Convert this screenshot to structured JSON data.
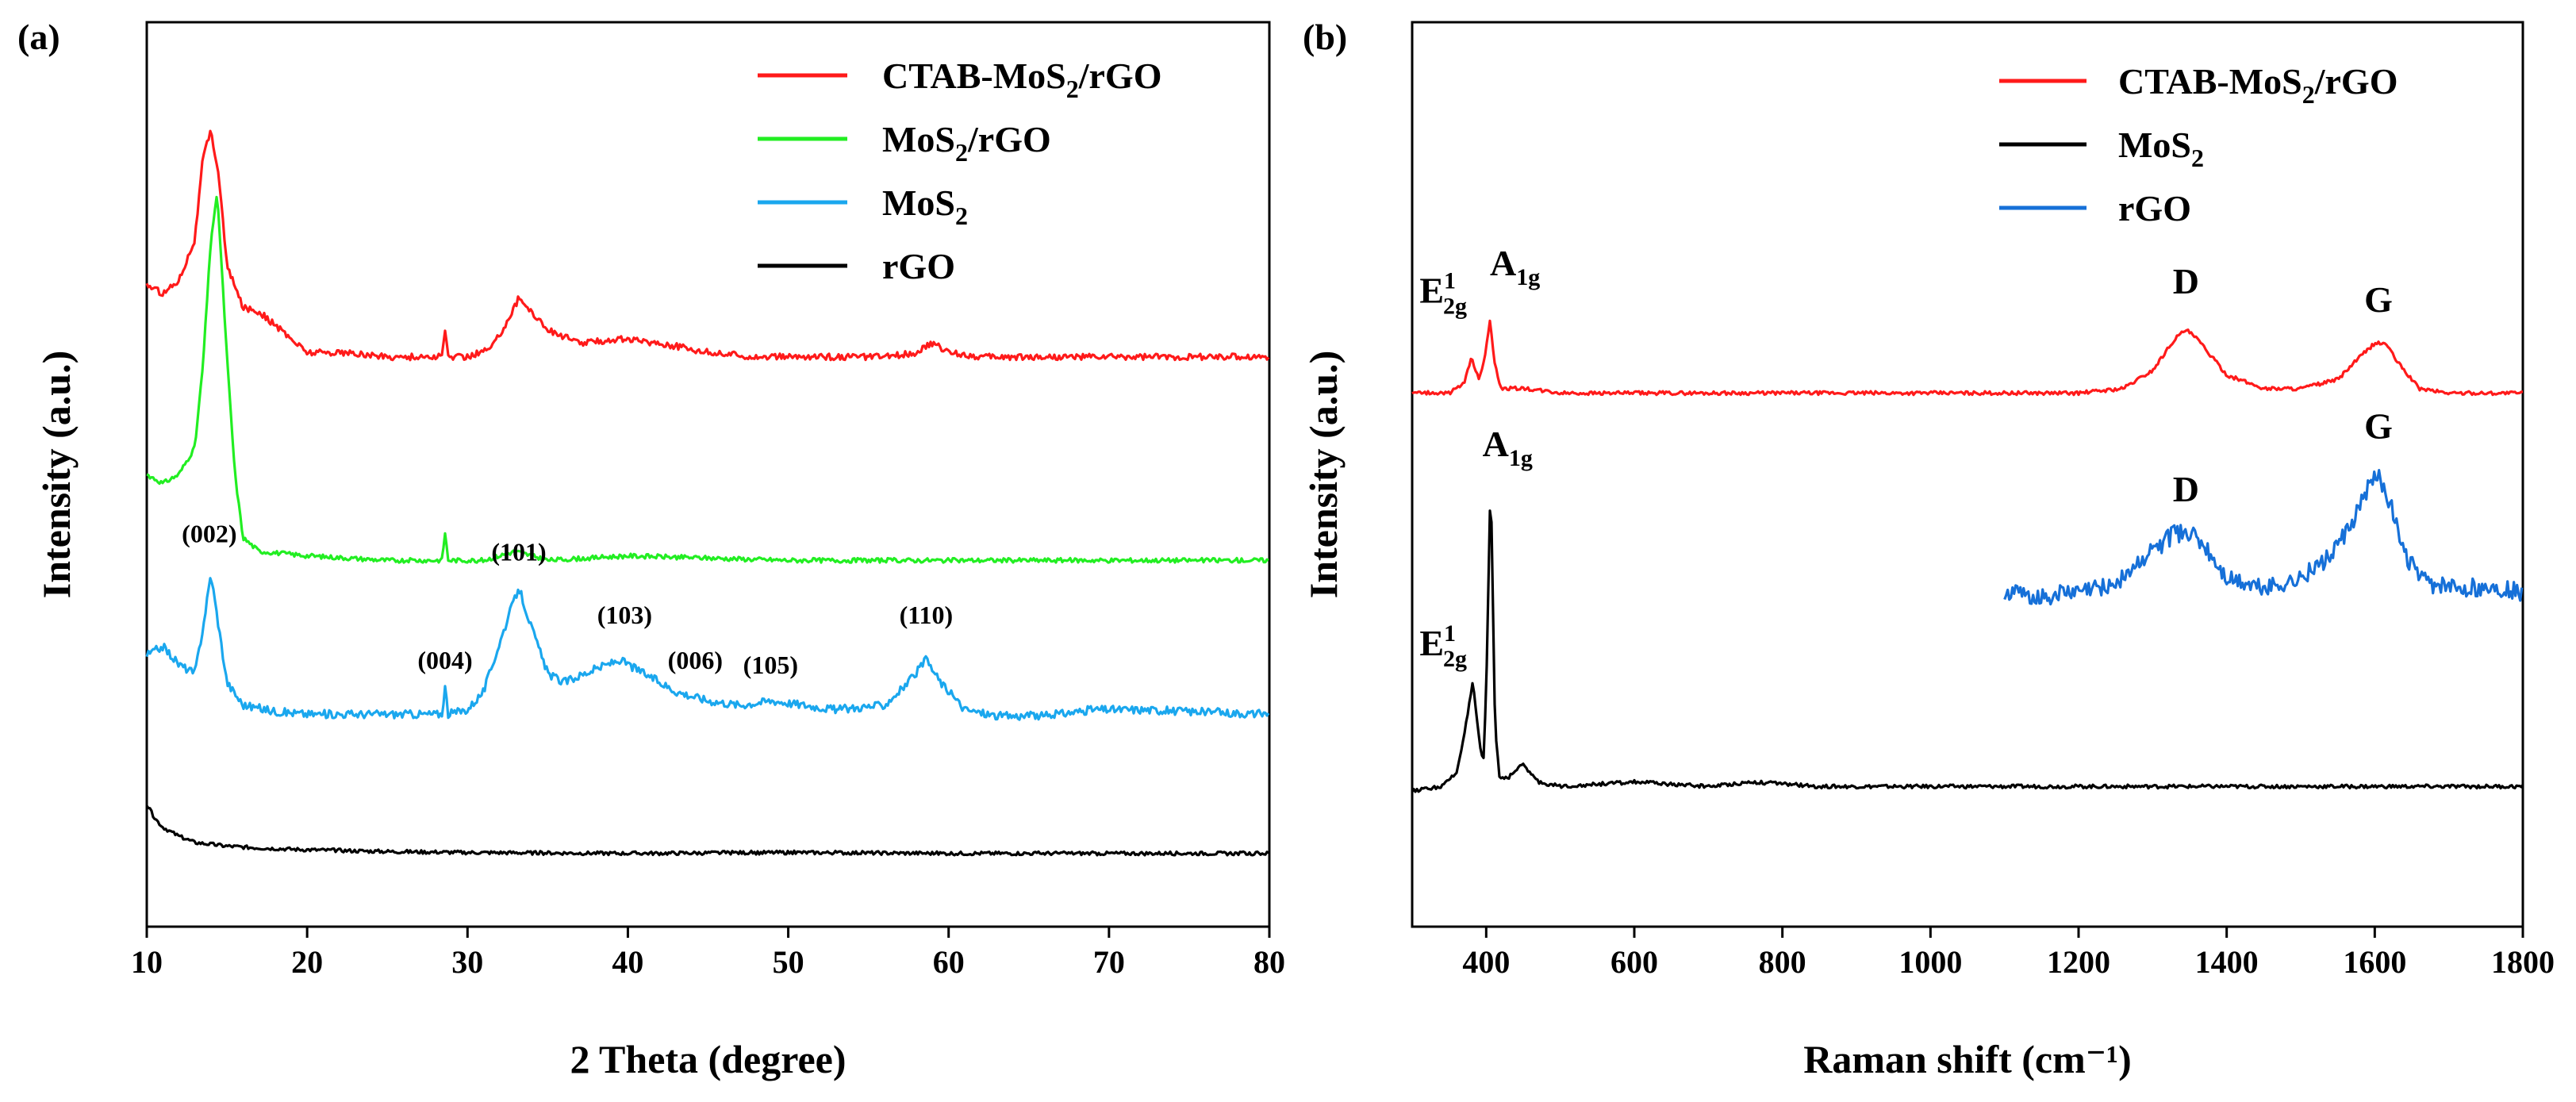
{
  "chart_data": [
    {
      "type": "line",
      "panel_label": "(a)",
      "xlabel": "2 Theta (degree)",
      "ylabel": "Intensity (a.u.)",
      "xlim": [
        10,
        80
      ],
      "ylim": [
        0,
        100
      ],
      "xticks": [
        10,
        20,
        30,
        40,
        50,
        60,
        70,
        80
      ],
      "yticks_shown": false,
      "legend_position": "top-right",
      "series": [
        {
          "name": "CTAB-MoS2/rGO",
          "legend_main": "CTAB-MoS",
          "legend_sub": "2",
          "legend_tail": "/rGO",
          "color": "#ff1a1a",
          "noise": 0.35,
          "x": [
            10,
            11,
            12,
            13,
            13.5,
            14,
            14.5,
            15,
            16,
            17,
            18,
            20,
            22,
            25,
            28,
            28.4,
            28.6,
            28.8,
            30,
            31.5,
            32.5,
            33.2,
            34,
            35,
            37,
            39.5,
            42,
            45,
            48,
            52,
            56,
            58,
            59,
            60,
            62,
            65,
            70,
            75,
            80
          ],
          "y": [
            71,
            70,
            71.5,
            76,
            85,
            88,
            83,
            73,
            68.5,
            68,
            66.5,
            63.5,
            63.5,
            63,
            63,
            63,
            66,
            63,
            63,
            64,
            67,
            69.5,
            68,
            66,
            64.5,
            65,
            64.5,
            63.5,
            63,
            63,
            63,
            63.5,
            64.5,
            63.5,
            63,
            63,
            63,
            63,
            63
          ]
        },
        {
          "name": "MoS2/rGO",
          "legend_main": "MoS",
          "legend_sub": "2",
          "legend_tail": "/rGO",
          "color": "#22ee22",
          "noise": 0.25,
          "x": [
            10,
            11,
            12,
            13,
            13.5,
            14,
            14.4,
            15,
            15.5,
            16,
            17,
            20,
            25,
            28.4,
            28.6,
            28.8,
            31,
            33,
            35,
            40,
            50,
            60,
            70,
            80
          ],
          "y": [
            50,
            49,
            50,
            53,
            62,
            76,
            81,
            63,
            50,
            43,
            41.5,
            41,
            40.5,
            40.5,
            43.5,
            40.5,
            40.5,
            41.5,
            40.5,
            41,
            40.5,
            40.5,
            40.5,
            40.5
          ]
        },
        {
          "name": "MoS2",
          "legend_main": "MoS",
          "legend_sub": "2",
          "legend_tail": "",
          "color": "#1aa7ee",
          "noise": 0.45,
          "x": [
            10,
            11,
            12,
            13,
            13.5,
            14,
            14.5,
            15,
            16,
            18,
            20,
            24,
            28.4,
            28.6,
            28.8,
            30,
            31,
            32.5,
            33.2,
            34,
            35,
            36,
            38,
            39.5,
            41,
            43,
            45,
            47,
            49,
            51,
            53,
            56,
            57.5,
            58.6,
            59.5,
            61,
            63,
            66,
            69,
            72,
            75,
            80
          ],
          "y": [
            30,
            31,
            29,
            28,
            33,
            39,
            33,
            27,
            24.5,
            23.8,
            23.5,
            23.5,
            23.5,
            26.5,
            23.5,
            24,
            26,
            34,
            37.5,
            33,
            28,
            27,
            28.5,
            29.5,
            28,
            26,
            25,
            24.5,
            25,
            24.5,
            24,
            24.5,
            27,
            29.5,
            27,
            24,
            23.3,
            23.3,
            24,
            24,
            23.8,
            23.5
          ]
        },
        {
          "name": "rGO",
          "legend_main": "rGO",
          "legend_sub": "",
          "legend_tail": "",
          "color": "#000000",
          "noise": 0.2,
          "x": [
            10,
            10.5,
            11,
            12,
            13,
            15,
            17,
            20,
            25,
            30,
            40,
            50,
            60,
            70,
            80
          ],
          "y": [
            13.5,
            12,
            11,
            10,
            9.3,
            8.9,
            8.7,
            8.5,
            8.3,
            8.2,
            8.1,
            8.2,
            8.1,
            8.1,
            8.1
          ]
        }
      ],
      "annotations": [
        {
          "text": "(002)",
          "x": 13.9,
          "y": 42.5
        },
        {
          "text": "(004)",
          "x": 28.6,
          "y": 28.5
        },
        {
          "text": "(101)",
          "x": 33.2,
          "y": 40.5
        },
        {
          "text": "(103)",
          "x": 39.8,
          "y": 33.5
        },
        {
          "text": "(006)",
          "x": 44.2,
          "y": 28.5
        },
        {
          "text": "(105)",
          "x": 48.9,
          "y": 28
        },
        {
          "text": "(110)",
          "x": 58.6,
          "y": 33.5
        }
      ]
    },
    {
      "type": "line",
      "panel_label": "(b)",
      "xlabel": "Raman shift (cm⁻¹)",
      "ylabel": "Intensity (a.u.)",
      "xlim": [
        300,
        1800
      ],
      "ylim": [
        0,
        100
      ],
      "xticks": [
        400,
        600,
        800,
        1000,
        1200,
        1400,
        1600,
        1800
      ],
      "yticks_shown": false,
      "legend_position": "top-right",
      "series": [
        {
          "name": "CTAB-MoS2/rGO",
          "legend_main": "CTAB-MoS",
          "legend_sub": "2",
          "legend_tail": "/rGO",
          "color": "#ff1a1a",
          "noise": 0.2,
          "x": [
            300,
            350,
            370,
            380,
            390,
            398,
            405,
            412,
            420,
            450,
            500,
            700,
            900,
            1000,
            1100,
            1200,
            1260,
            1300,
            1330,
            1345,
            1360,
            1400,
            1450,
            1500,
            1550,
            1580,
            1600,
            1615,
            1630,
            1660,
            1700,
            1800
          ],
          "y": [
            59,
            59,
            60,
            63,
            60.5,
            63,
            67,
            62,
            59.5,
            59.5,
            59,
            59,
            59,
            59,
            59,
            59,
            59.5,
            61.5,
            65,
            66,
            65,
            61,
            59.5,
            59.5,
            60.5,
            63,
            64.5,
            64.5,
            62.5,
            59.5,
            59,
            59
          ]
        },
        {
          "name": "MoS2",
          "legend_main": "MoS",
          "legend_sub": "2",
          "legend_tail": "",
          "color": "#000000",
          "noise": 0.2,
          "x": [
            300,
            340,
            360,
            372,
            382,
            390,
            396,
            400,
            406,
            412,
            418,
            430,
            450,
            470,
            500,
            600,
            700,
            760,
            850,
            1000,
            1200,
            1400,
            1600,
            1800
          ],
          "y": [
            15,
            15.5,
            17,
            22,
            27,
            21,
            18,
            26,
            50,
            22,
            16.5,
            16.5,
            18,
            16,
            15.5,
            16,
            15.5,
            16,
            15.5,
            15.5,
            15.5,
            15.5,
            15.5,
            15.5
          ]
        },
        {
          "name": "rGO",
          "legend_main": "rGO",
          "legend_sub": "",
          "legend_tail": "",
          "color": "#1670d8",
          "noise": 1.0,
          "x": [
            1100,
            1150,
            1200,
            1250,
            1300,
            1330,
            1350,
            1370,
            1400,
            1450,
            1500,
            1540,
            1570,
            1590,
            1605,
            1620,
            1640,
            1670,
            1700,
            1750,
            1800
          ],
          "y": [
            37,
            36.5,
            37,
            38,
            41.5,
            43.5,
            43.5,
            42,
            38.5,
            37.5,
            38.5,
            41,
            44.5,
            48.5,
            50,
            47,
            41,
            38,
            37.5,
            37.5,
            37
          ]
        }
      ],
      "annotations": [
        {
          "kind": "raman",
          "main": "E",
          "sup": "1",
          "sub": "2g",
          "x": 310,
          "y": 69
        },
        {
          "kind": "raman",
          "main": "A",
          "sup": "",
          "sub": "1g",
          "x": 405,
          "y": 72
        },
        {
          "kind": "plain",
          "text": "D",
          "x": 1345,
          "y": 70
        },
        {
          "kind": "plain",
          "text": "G",
          "x": 1605,
          "y": 68
        },
        {
          "kind": "raman",
          "main": "A",
          "sup": "",
          "sub": "1g",
          "x": 395,
          "y": 52
        },
        {
          "kind": "plain",
          "text": "D",
          "x": 1345,
          "y": 47
        },
        {
          "kind": "plain",
          "text": "G",
          "x": 1605,
          "y": 54
        },
        {
          "kind": "raman",
          "main": "E",
          "sup": "1",
          "sub": "2g",
          "x": 310,
          "y": 30
        }
      ]
    }
  ]
}
